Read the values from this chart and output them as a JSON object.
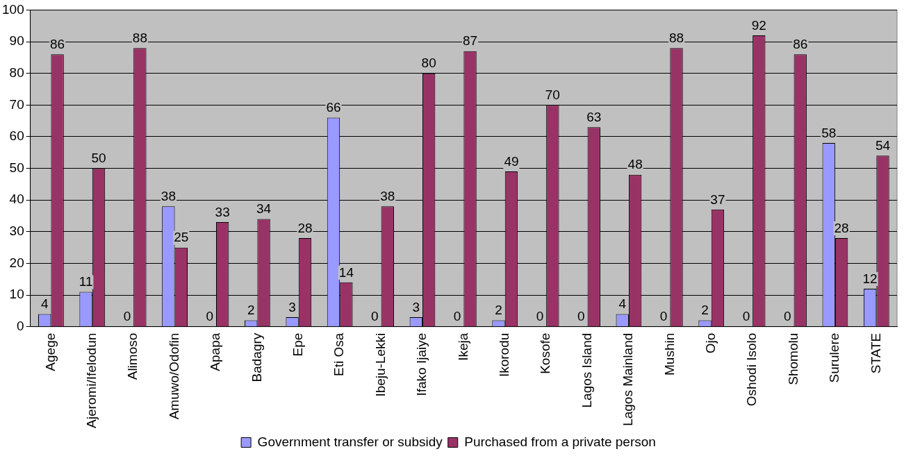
{
  "chart_data": {
    "type": "bar",
    "categories": [
      "Agege",
      "Ajeromi/Ifelodun",
      "Alimoso",
      "Amuwo/Odofin",
      "Apapa",
      "Badagry",
      "Epe",
      "Eti Osa",
      "Ibeju-Lekki",
      "Ifako Ijaiye",
      "Ikeja",
      "Ikorodu",
      "Kosofe",
      "Lagos Island",
      "Lagos Mainland",
      "Mushin",
      "Ojo",
      "Oshodi Isolo",
      "Shomolu",
      "Surulere",
      "STATE"
    ],
    "series": [
      {
        "name": "Government transfer or subsidy",
        "color": "#9999ff",
        "values": [
          4,
          11,
          0,
          38,
          0,
          2,
          3,
          66,
          0,
          3,
          0,
          2,
          0,
          0,
          4,
          0,
          2,
          0,
          0,
          58,
          12
        ]
      },
      {
        "name": "Purchased from a private person",
        "color": "#993366",
        "values": [
          86,
          50,
          88,
          25,
          33,
          34,
          28,
          14,
          38,
          80,
          87,
          49,
          70,
          63,
          48,
          88,
          37,
          92,
          86,
          28,
          54
        ]
      }
    ],
    "ylim": [
      0,
      100
    ],
    "yticks": [
      0,
      10,
      20,
      30,
      40,
      50,
      60,
      70,
      80,
      90,
      100
    ],
    "grid": "y",
    "legend": "bottom",
    "data_labels": true
  }
}
